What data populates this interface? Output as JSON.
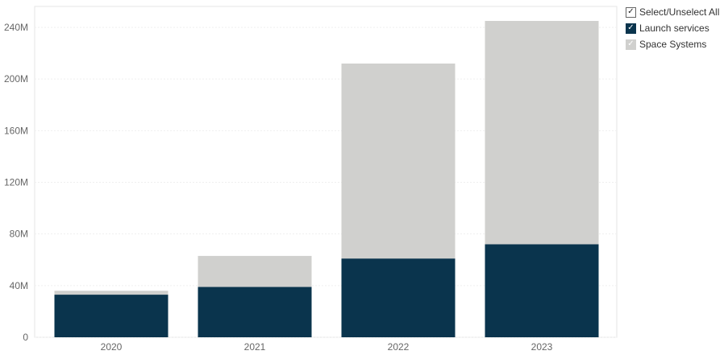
{
  "legend": {
    "select_all_label": "Select/Unselect All",
    "check_glyph": "✓",
    "items": [
      {
        "label": "Launch services",
        "color": "#0a344d",
        "checked": true
      },
      {
        "label": "Space Systems",
        "color": "#d0d0ce",
        "checked": true
      }
    ]
  },
  "chart_data": {
    "type": "bar",
    "stacked": true,
    "categories": [
      "2020",
      "2021",
      "2022",
      "2023"
    ],
    "series": [
      {
        "name": "Launch services",
        "color": "#0a344d",
        "values": [
          33,
          39,
          61,
          72
        ]
      },
      {
        "name": "Space Systems",
        "color": "#d0d0ce",
        "values": [
          3,
          24,
          151,
          173
        ]
      }
    ],
    "ylim": [
      0,
      240
    ],
    "yticks": [
      0,
      40,
      80,
      120,
      160,
      200,
      240
    ],
    "ytick_labels": [
      "0",
      "40M",
      "80M",
      "120M",
      "160M",
      "200M",
      "240M"
    ],
    "grid": true,
    "legend_position": "top-right"
  }
}
